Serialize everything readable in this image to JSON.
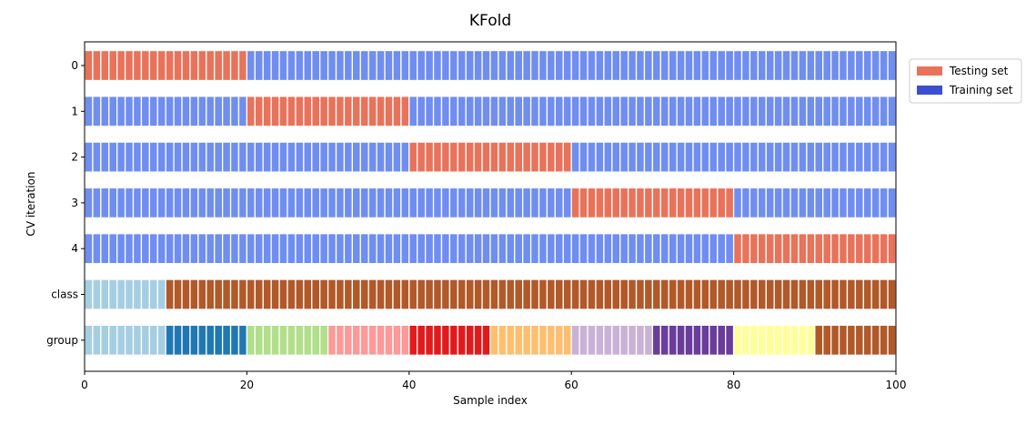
{
  "chart_data": {
    "type": "heatmap",
    "title": "KFold",
    "xlabel": "Sample index",
    "ylabel": "CV iteration",
    "xlim": [
      0,
      100
    ],
    "x_ticks": [
      "0",
      "20",
      "40",
      "60",
      "80",
      "100"
    ],
    "n_samples": 100,
    "rows": [
      {
        "label": "0",
        "kind": "split",
        "test_start": 0,
        "test_end": 20
      },
      {
        "label": "1",
        "kind": "split",
        "test_start": 20,
        "test_end": 40
      },
      {
        "label": "2",
        "kind": "split",
        "test_start": 40,
        "test_end": 60
      },
      {
        "label": "3",
        "kind": "split",
        "test_start": 60,
        "test_end": 80
      },
      {
        "label": "4",
        "kind": "split",
        "test_start": 80,
        "test_end": 100
      },
      {
        "label": "class",
        "kind": "segments",
        "segments": [
          {
            "start": 0,
            "end": 10,
            "color": "#a6cee3"
          },
          {
            "start": 10,
            "end": 100,
            "color": "#b15928"
          }
        ]
      },
      {
        "label": "group",
        "kind": "segments",
        "segments": [
          {
            "start": 0,
            "end": 10,
            "color": "#a6cee3"
          },
          {
            "start": 10,
            "end": 20,
            "color": "#1f78b4"
          },
          {
            "start": 20,
            "end": 30,
            "color": "#b2df8a"
          },
          {
            "start": 30,
            "end": 40,
            "color": "#fb9a99"
          },
          {
            "start": 40,
            "end": 50,
            "color": "#e31a1c"
          },
          {
            "start": 50,
            "end": 60,
            "color": "#fdbf6f"
          },
          {
            "start": 60,
            "end": 70,
            "color": "#cab2d6"
          },
          {
            "start": 70,
            "end": 80,
            "color": "#6a3d9a"
          },
          {
            "start": 80,
            "end": 90,
            "color": "#ffff99"
          },
          {
            "start": 90,
            "end": 100,
            "color": "#b15928"
          }
        ]
      }
    ],
    "colors": {
      "testing": "#e8735a",
      "training": "#6f8ef0",
      "legend_testing": "#e8735a",
      "legend_training": "#3b4fd1"
    },
    "legend": {
      "placement": "outside right, top",
      "entries": [
        {
          "label": "Testing set",
          "color_key": "legend_testing"
        },
        {
          "label": "Training set",
          "color_key": "legend_training"
        }
      ]
    }
  }
}
